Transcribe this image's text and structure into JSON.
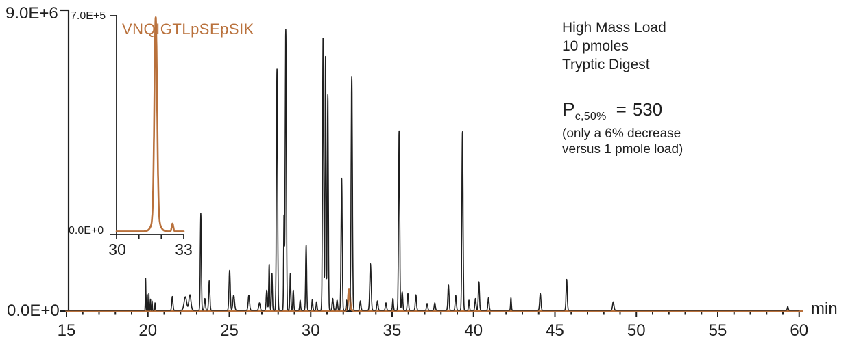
{
  "figure": {
    "background": "#ffffff",
    "text_color": "#1f1f1f",
    "accent_orange": "#b9713c"
  },
  "annotations": {
    "sample_info": [
      "High Mass Load",
      "10 pmoles",
      "Tryptic Digest"
    ],
    "pc": {
      "symbol": "P",
      "subscript": "c,50%",
      "operator": "=",
      "value": "530"
    },
    "pc_note": [
      "(only a 6% decrease",
      "versus 1 pmole load)"
    ]
  },
  "chart_data": [
    {
      "type": "line",
      "name": "main-chromatogram",
      "xlabel": "min",
      "xlim": [
        15,
        60
      ],
      "ylim": [
        0,
        9000000
      ],
      "x_ticks": [
        15,
        20,
        25,
        30,
        35,
        40,
        45,
        50,
        55,
        60
      ],
      "x_minor_tick_step": 1,
      "y_axis_labels": {
        "top": "9.0E+6",
        "bottom": "0.0E+0"
      },
      "peak_format": [
        "retention_time_min",
        "height_counts",
        "gaussian_width_min"
      ],
      "series": [
        {
          "name": "tryptic-digest-tic",
          "color": "#1f1f1f",
          "baseline": 25000,
          "peaks": [
            [
              19.86,
              950000,
              0.022
            ],
            [
              19.96,
              480000,
              0.018
            ],
            [
              20.06,
              520000,
              0.018
            ],
            [
              20.16,
              330000,
              0.018
            ],
            [
              20.26,
              280000,
              0.018
            ],
            [
              20.44,
              220000,
              0.025
            ],
            [
              21.5,
              410000,
              0.05
            ],
            [
              22.3,
              400000,
              0.11
            ],
            [
              22.58,
              460000,
              0.09
            ],
            [
              23.25,
              2890000,
              0.045
            ],
            [
              23.5,
              350000,
              0.05
            ],
            [
              23.77,
              880000,
              0.05
            ],
            [
              25.02,
              1190000,
              0.055
            ],
            [
              25.27,
              450000,
              0.07
            ],
            [
              26.2,
              450000,
              0.06
            ],
            [
              26.85,
              220000,
              0.06
            ],
            [
              27.3,
              600000,
              0.05
            ],
            [
              27.45,
              1370000,
              0.04
            ],
            [
              27.62,
              1100000,
              0.04
            ],
            [
              27.93,
              7200000,
              0.05
            ],
            [
              28.36,
              2800000,
              0.035
            ],
            [
              28.47,
              8380000,
              0.05
            ],
            [
              28.75,
              1100000,
              0.04
            ],
            [
              28.93,
              600000,
              0.04
            ],
            [
              29.35,
              300000,
              0.04
            ],
            [
              29.72,
              1940000,
              0.045
            ],
            [
              30.1,
              320000,
              0.04
            ],
            [
              30.36,
              250000,
              0.04
            ],
            [
              30.76,
              8140000,
              0.05
            ],
            [
              30.91,
              7600000,
              0.04
            ],
            [
              31.05,
              6430000,
              0.045
            ],
            [
              31.35,
              350000,
              0.05
            ],
            [
              31.62,
              300000,
              0.05
            ],
            [
              31.9,
              3950000,
              0.05
            ],
            [
              32.2,
              300000,
              0.04
            ],
            [
              32.52,
              6980000,
              0.055
            ],
            [
              33.05,
              280000,
              0.05
            ],
            [
              33.67,
              1390000,
              0.06
            ],
            [
              34.1,
              280000,
              0.05
            ],
            [
              34.62,
              220000,
              0.05
            ],
            [
              35.05,
              350000,
              0.04
            ],
            [
              35.43,
              5350000,
              0.05
            ],
            [
              35.62,
              550000,
              0.05
            ],
            [
              35.97,
              500000,
              0.05
            ],
            [
              36.46,
              460000,
              0.05
            ],
            [
              37.15,
              200000,
              0.05
            ],
            [
              37.62,
              220000,
              0.05
            ],
            [
              38.46,
              750000,
              0.05
            ],
            [
              38.91,
              440000,
              0.05
            ],
            [
              39.32,
              5340000,
              0.05
            ],
            [
              39.72,
              300000,
              0.04
            ],
            [
              40.12,
              350000,
              0.05
            ],
            [
              40.33,
              850000,
              0.05
            ],
            [
              40.92,
              370000,
              0.05
            ],
            [
              42.3,
              370000,
              0.035
            ],
            [
              44.1,
              500000,
              0.055
            ],
            [
              45.72,
              920000,
              0.05
            ],
            [
              48.58,
              250000,
              0.06
            ],
            [
              59.3,
              110000,
              0.04
            ]
          ]
        },
        {
          "name": "phosphopeptide-xic",
          "color": "#b9713c",
          "baseline": 0,
          "peaks": [
            [
              32.36,
              600000,
              0.075
            ],
            [
              32.36,
              60000,
              0.2
            ]
          ]
        }
      ]
    },
    {
      "type": "line",
      "name": "inset-zoom-chromatogram",
      "title": "VNQIGTLpSEpSIK",
      "xlim": [
        30,
        33
      ],
      "ylim": [
        0,
        700000
      ],
      "x_ticks": [
        30,
        31,
        32,
        33
      ],
      "x_tick_labels": [
        "30",
        "33"
      ],
      "y_axis_labels": {
        "top": "7.0E+5",
        "bottom": "0.0E+0"
      },
      "peak_format": [
        "retention_time_min",
        "height_counts",
        "gaussian_width_min"
      ],
      "series": [
        {
          "name": "phosphopeptide-xic-zoom",
          "color": "#b9713c",
          "baseline": 10000,
          "peaks": [
            [
              31.75,
              640000,
              0.085
            ],
            [
              31.75,
              45000,
              0.22
            ],
            [
              32.5,
              25000,
              0.05
            ]
          ]
        }
      ]
    }
  ]
}
